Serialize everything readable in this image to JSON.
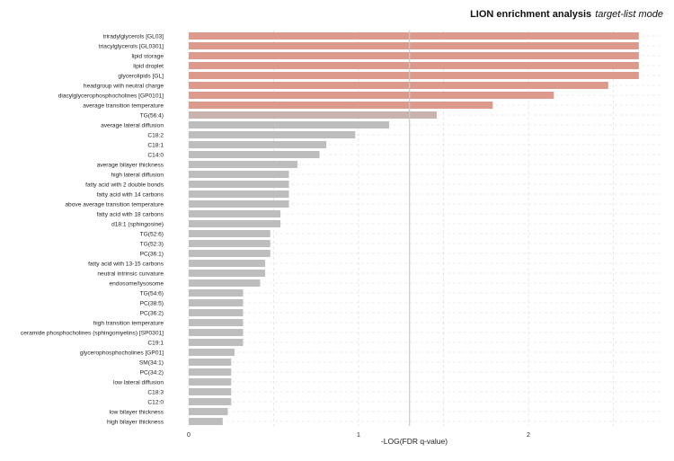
{
  "chart_data": {
    "type": "bar",
    "orientation": "horizontal",
    "title": "LION enrichment analysis",
    "subtitle": "target-list mode",
    "xlabel": "-LOG(FDR q-value)",
    "ylabel": "",
    "xlim": [
      0,
      2.85
    ],
    "xticks": [
      "0",
      "1",
      "2"
    ],
    "threshold_line": 1.3,
    "grid": "dashed",
    "categories": [
      "triradylglycerols [GL03]",
      "triacylglycerols [GL0301]",
      "lipid storage",
      "lipid droplet",
      "glycerolipids [GL]",
      "headgroup with neutral charge",
      "diacylglycerophosphocholines [GP0101]",
      "average transition temperature",
      "TG(56:4)",
      "average lateral diffusion",
      "C18:2",
      "C18:1",
      "C14:0",
      "average bilayer thickness",
      "high lateral diffusion",
      "fatty acid with 2 double bonds",
      "fatty acid with 14 carbons",
      "above average transition temperature",
      "fatty acid with 18 carbons",
      "d18:1 (sphingosine)",
      "TG(52:6)",
      "TG(52:3)",
      "PC(36:1)",
      "fatty acid with 13-15 carbons",
      "neutral intrinsic curvature",
      "endosome/lysosome",
      "TG(54:6)",
      "PC(38:5)",
      "PC(36:2)",
      "high transition temperature",
      "ceramide phosphocholines (sphingomyelins) [SP0301]",
      "C19:1",
      "glycerophosphocholines [GP01]",
      "SM(34:1)",
      "PC(34:2)",
      "low lateral diffusion",
      "C18:3",
      "C12:0",
      "low bilayer thickness",
      "high bilayer thickness"
    ],
    "values": [
      2.65,
      2.65,
      2.65,
      2.65,
      2.65,
      2.47,
      2.15,
      1.79,
      1.46,
      1.18,
      0.98,
      0.81,
      0.77,
      0.64,
      0.59,
      0.59,
      0.59,
      0.59,
      0.54,
      0.54,
      0.48,
      0.48,
      0.48,
      0.45,
      0.45,
      0.42,
      0.32,
      0.32,
      0.32,
      0.32,
      0.32,
      0.32,
      0.27,
      0.25,
      0.25,
      0.25,
      0.25,
      0.25,
      0.23,
      0.2
    ],
    "colors": {
      "significant": "#db9a8c",
      "near_threshold": "#c9b3ae",
      "not_significant": "#bdbdbd",
      "threshold_line": "#c8c8c8",
      "grid": "#d8d8d8"
    }
  }
}
